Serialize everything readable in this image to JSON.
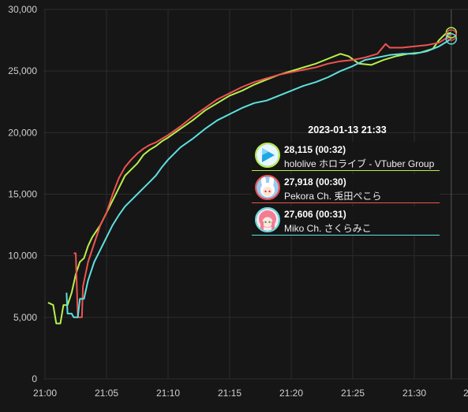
{
  "chart_data": {
    "type": "line",
    "title": "",
    "xlabel": "",
    "ylabel": "",
    "ylim": [
      0,
      30000
    ],
    "y_ticks": [
      "0",
      "5,000",
      "10,000",
      "15,000",
      "20,000",
      "25,000",
      "30,000"
    ],
    "x_ticks": [
      "21:00",
      "21:05",
      "21:10",
      "21:15",
      "21:20",
      "21:25",
      "21:30",
      "2"
    ],
    "grid": true,
    "legend": "none",
    "series": [
      {
        "color": "#b8f04c",
        "points": [
          [
            "21:00:15",
            6200
          ],
          [
            "21:00:40",
            6000
          ],
          [
            "21:00:55",
            4500
          ],
          [
            "21:01:15",
            4500
          ],
          [
            "21:01:30",
            6000
          ],
          [
            "21:01:50",
            6000
          ],
          [
            "21:02:10",
            7000
          ],
          [
            "21:02:30",
            8500
          ],
          [
            "21:02:50",
            9500
          ],
          [
            "21:03:10",
            9800
          ],
          [
            "21:03:30",
            10800
          ],
          [
            "21:03:50",
            11500
          ],
          [
            "21:04:10",
            12000
          ],
          [
            "21:04:30",
            12500
          ],
          [
            "21:05:00",
            13500
          ],
          [
            "21:05:30",
            14500
          ],
          [
            "21:06:00",
            15500
          ],
          [
            "21:06:30",
            16500
          ],
          [
            "21:07:00",
            17000
          ],
          [
            "21:07:30",
            17500
          ],
          [
            "21:08:00",
            18200
          ],
          [
            "21:08:30",
            18600
          ],
          [
            "21:09:00",
            18900
          ],
          [
            "21:09:30",
            19300
          ],
          [
            "21:10:00",
            19600
          ],
          [
            "21:11:00",
            20300
          ],
          [
            "21:12:00",
            21000
          ],
          [
            "21:13:00",
            21800
          ],
          [
            "21:14:00",
            22400
          ],
          [
            "21:15:00",
            23000
          ],
          [
            "21:16:00",
            23400
          ],
          [
            "21:17:00",
            23900
          ],
          [
            "21:18:00",
            24300
          ],
          [
            "21:19:00",
            24700
          ],
          [
            "21:20:00",
            25000
          ],
          [
            "21:21:00",
            25300
          ],
          [
            "21:22:00",
            25600
          ],
          [
            "21:23:00",
            26000
          ],
          [
            "21:24:00",
            26400
          ],
          [
            "21:24:40",
            26200
          ],
          [
            "21:25:30",
            25600
          ],
          [
            "21:26:30",
            25500
          ],
          [
            "21:27:30",
            25900
          ],
          [
            "21:28:30",
            26200
          ],
          [
            "21:29:30",
            26400
          ],
          [
            "21:30:30",
            26500
          ],
          [
            "21:31:30",
            26800
          ],
          [
            "21:32:00",
            27500
          ],
          [
            "21:32:30",
            28000
          ],
          [
            "21:33:00",
            28115
          ]
        ]
      },
      {
        "color": "#ef5350",
        "points": [
          [
            "21:02:20",
            10200
          ],
          [
            "21:02:30",
            10200
          ],
          [
            "21:02:40",
            5000
          ],
          [
            "21:03:00",
            5000
          ],
          [
            "21:03:05",
            7500
          ],
          [
            "21:03:30",
            9500
          ],
          [
            "21:04:00",
            11000
          ],
          [
            "21:04:30",
            12500
          ],
          [
            "21:05:00",
            13500
          ],
          [
            "21:05:30",
            15000
          ],
          [
            "21:06:00",
            16300
          ],
          [
            "21:06:30",
            17200
          ],
          [
            "21:07:00",
            17800
          ],
          [
            "21:07:30",
            18300
          ],
          [
            "21:08:00",
            18700
          ],
          [
            "21:08:30",
            19000
          ],
          [
            "21:09:00",
            19200
          ],
          [
            "21:09:30",
            19500
          ],
          [
            "21:10:00",
            19800
          ],
          [
            "21:11:00",
            20500
          ],
          [
            "21:12:00",
            21300
          ],
          [
            "21:13:00",
            22000
          ],
          [
            "21:14:00",
            22700
          ],
          [
            "21:15:00",
            23200
          ],
          [
            "21:16:00",
            23700
          ],
          [
            "21:17:00",
            24100
          ],
          [
            "21:18:00",
            24400
          ],
          [
            "21:19:00",
            24700
          ],
          [
            "21:20:00",
            24900
          ],
          [
            "21:21:00",
            25100
          ],
          [
            "21:22:00",
            25300
          ],
          [
            "21:23:00",
            25600
          ],
          [
            "21:24:00",
            25800
          ],
          [
            "21:25:00",
            25900
          ],
          [
            "21:26:00",
            26100
          ],
          [
            "21:27:00",
            26400
          ],
          [
            "21:27:40",
            27200
          ],
          [
            "21:28:00",
            26900
          ],
          [
            "21:29:00",
            26900
          ],
          [
            "21:30:00",
            27000
          ],
          [
            "21:31:00",
            27100
          ],
          [
            "21:32:00",
            27300
          ],
          [
            "21:33:00",
            27918
          ]
        ]
      },
      {
        "color": "#5ee0e0",
        "points": [
          [
            "21:01:45",
            7000
          ],
          [
            "21:01:50",
            5300
          ],
          [
            "21:02:10",
            5300
          ],
          [
            "21:02:20",
            5000
          ],
          [
            "21:02:40",
            5000
          ],
          [
            "21:02:50",
            6500
          ],
          [
            "21:03:10",
            6500
          ],
          [
            "21:03:30",
            8000
          ],
          [
            "21:04:00",
            9500
          ],
          [
            "21:04:30",
            10500
          ],
          [
            "21:05:00",
            11500
          ],
          [
            "21:05:30",
            12500
          ],
          [
            "21:06:00",
            13300
          ],
          [
            "21:06:30",
            14000
          ],
          [
            "21:07:00",
            14500
          ],
          [
            "21:07:30",
            15000
          ],
          [
            "21:08:00",
            15500
          ],
          [
            "21:08:30",
            16000
          ],
          [
            "21:09:00",
            16500
          ],
          [
            "21:09:30",
            17200
          ],
          [
            "21:10:00",
            17800
          ],
          [
            "21:11:00",
            18800
          ],
          [
            "21:12:00",
            19500
          ],
          [
            "21:13:00",
            20300
          ],
          [
            "21:14:00",
            21000
          ],
          [
            "21:15:00",
            21500
          ],
          [
            "21:16:00",
            22000
          ],
          [
            "21:17:00",
            22400
          ],
          [
            "21:18:00",
            22600
          ],
          [
            "21:19:00",
            23000
          ],
          [
            "21:20:00",
            23400
          ],
          [
            "21:21:00",
            23800
          ],
          [
            "21:22:00",
            24100
          ],
          [
            "21:23:00",
            24500
          ],
          [
            "21:24:00",
            25000
          ],
          [
            "21:25:00",
            25400
          ],
          [
            "21:26:00",
            25900
          ],
          [
            "21:27:00",
            26100
          ],
          [
            "21:28:00",
            26300
          ],
          [
            "21:29:00",
            26400
          ],
          [
            "21:30:00",
            26400
          ],
          [
            "21:31:00",
            26600
          ],
          [
            "21:32:00",
            27000
          ],
          [
            "21:33:00",
            27606
          ]
        ]
      }
    ],
    "crosshair_time": "21:33:00",
    "tooltip": {
      "title": "2023-01-13 21:33",
      "entries": [
        {
          "value": "28,115",
          "duration": "(00:32)",
          "name": "hololive ホロライブ - VTuber Group",
          "color": "#b8f04c",
          "avatar_icon": "play-logo-icon"
        },
        {
          "value": "27,918",
          "duration": "(00:30)",
          "name": "Pekora Ch. 兎田ぺこら",
          "color": "#ef5350",
          "avatar_icon": "rabbit-girl-avatar-icon"
        },
        {
          "value": "27,606",
          "duration": "(00:31)",
          "name": "Miko Ch. さくらみこ",
          "color": "#5ee0e0",
          "avatar_icon": "pink-hair-girl-avatar-icon"
        }
      ]
    }
  }
}
